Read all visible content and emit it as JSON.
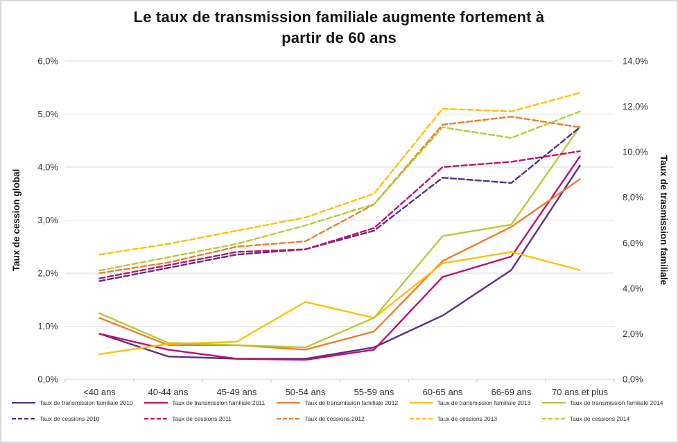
{
  "title": {
    "line1": "Le taux de transmission familiale augmente fortement à",
    "line2": "partir de 60 ans"
  },
  "chart_data": {
    "type": "line",
    "categories": [
      "<40 ans",
      "40-44 ans",
      "45-49 ans",
      "50-54 ans",
      "55-59 ans",
      "60-65 ans",
      "66-69 ans",
      "70 ans et plus"
    ],
    "left_axis": {
      "label": "Taux de cession global",
      "min": 0,
      "max": 6,
      "ticks": [
        "0,0%",
        "1,0%",
        "2,0%",
        "3,0%",
        "4,0%",
        "5,0%",
        "6,0%"
      ]
    },
    "right_axis": {
      "label": "Taux de trasmission familiale",
      "min": 0,
      "max": 14,
      "ticks": [
        "0,0%",
        "2,0%",
        "4,0%",
        "6,0%",
        "8,0%",
        "10,0%",
        "12,0%",
        "14,0%"
      ]
    },
    "grid": true,
    "legend_position": "bottom",
    "colors": {
      "y2010": "#5B2D86",
      "y2011": "#C20E6E",
      "y2012": "#F07D29",
      "y2013": "#FFC000",
      "y2014": "#B4CC35"
    },
    "series": [
      {
        "name": "Taux de transmission familiale 2010",
        "axis": "right",
        "style": "solid",
        "color": "#5B2D86",
        "values": [
          2.0,
          1.0,
          0.9,
          0.9,
          1.4,
          2.8,
          4.8,
          9.4
        ]
      },
      {
        "name": "Taux de transmission familiale 2011",
        "axis": "right",
        "style": "solid",
        "color": "#C20E6E",
        "values": [
          2.0,
          1.3,
          0.9,
          0.85,
          1.3,
          4.5,
          5.4,
          9.8
        ]
      },
      {
        "name": "Taux de transmission familiale 2012",
        "axis": "right",
        "style": "solid",
        "color": "#F07D29",
        "values": [
          2.7,
          1.5,
          1.5,
          1.3,
          2.1,
          5.2,
          6.7,
          8.8
        ]
      },
      {
        "name": "Taux de transmission familiale 2013",
        "axis": "right",
        "style": "solid",
        "color": "#FFC000",
        "values": [
          1.1,
          1.55,
          1.65,
          3.4,
          2.7,
          5.1,
          5.6,
          4.8
        ]
      },
      {
        "name": "Taux de transmission familiale 2014",
        "axis": "right",
        "style": "solid",
        "color": "#B4CC35",
        "values": [
          2.9,
          1.6,
          1.5,
          1.4,
          2.7,
          6.3,
          6.8,
          11.1
        ]
      },
      {
        "name": "Taux de cessions 2010",
        "axis": "left",
        "style": "dashed",
        "color": "#5B2D86",
        "values": [
          1.85,
          2.1,
          2.35,
          2.45,
          2.8,
          3.8,
          3.7,
          4.75
        ]
      },
      {
        "name": "Taux de cessions 2011",
        "axis": "left",
        "style": "dashed",
        "color": "#C20E6E",
        "values": [
          1.9,
          2.15,
          2.4,
          2.45,
          2.85,
          4.0,
          4.1,
          4.3
        ]
      },
      {
        "name": "Taux de cessions 2012",
        "axis": "left",
        "style": "dashed",
        "color": "#F07D29",
        "values": [
          2.0,
          2.2,
          2.5,
          2.6,
          3.3,
          4.8,
          4.95,
          4.75
        ]
      },
      {
        "name": "Taux de cessions 2013",
        "axis": "left",
        "style": "dashed",
        "color": "#FFC000",
        "values": [
          2.35,
          2.55,
          2.8,
          3.05,
          3.5,
          5.1,
          5.05,
          5.4
        ]
      },
      {
        "name": "Taux de cessions 2014",
        "axis": "left",
        "style": "dashed",
        "color": "#B4CC35",
        "values": [
          2.05,
          2.3,
          2.55,
          2.9,
          3.3,
          4.75,
          4.55,
          5.05
        ]
      }
    ]
  }
}
